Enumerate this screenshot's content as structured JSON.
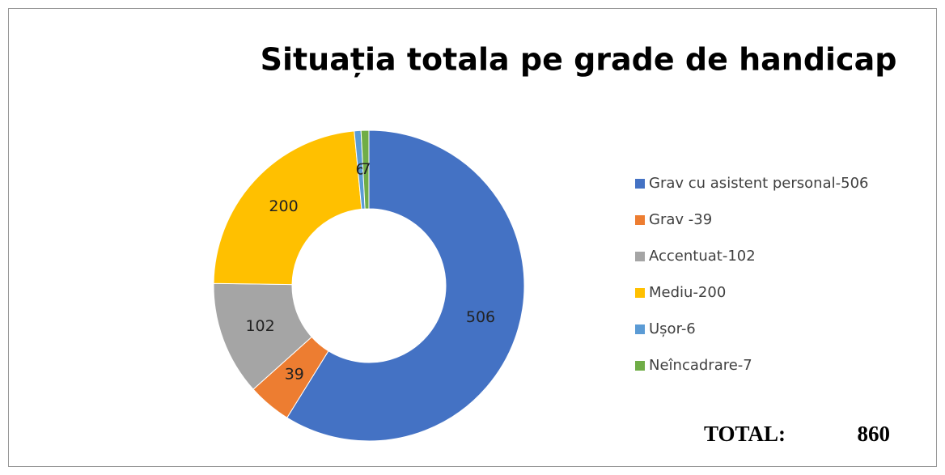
{
  "chart_data": {
    "type": "donut",
    "title": "Situația totala pe grade de handicap",
    "categories": [
      "Grav cu asistent personal-506",
      "Grav -39",
      "Accentuat-102",
      "Mediu-200",
      "Ușor-6",
      "Neîncadrare-7"
    ],
    "values": [
      506,
      39,
      102,
      200,
      6,
      7
    ],
    "colors": [
      "#4472c4",
      "#ed7d31",
      "#a5a5a5",
      "#ffc000",
      "#5b9bd5",
      "#70ad47"
    ],
    "legend": "right",
    "total_label": "TOTAL:",
    "total": 860
  }
}
